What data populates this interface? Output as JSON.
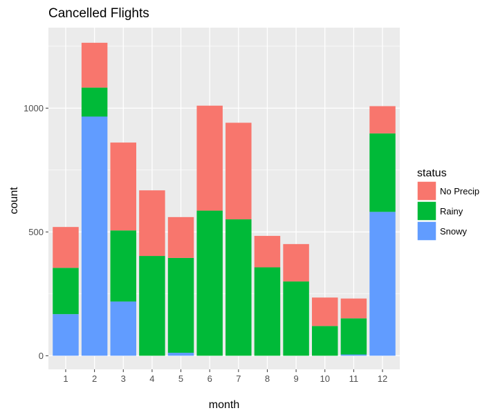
{
  "chart_data": {
    "type": "bar",
    "stacked": true,
    "title": "Cancelled Flights",
    "xlabel": "month",
    "ylabel": "count",
    "categories": [
      "1",
      "2",
      "3",
      "4",
      "5",
      "6",
      "7",
      "8",
      "9",
      "10",
      "11",
      "12"
    ],
    "series": [
      {
        "name": "Snowy",
        "color": "#619CFF",
        "values": [
          168,
          966,
          219,
          0,
          12,
          0,
          0,
          0,
          0,
          0,
          5,
          581
        ]
      },
      {
        "name": "Rainy",
        "color": "#00BA38",
        "values": [
          187,
          117,
          287,
          403,
          383,
          586,
          551,
          357,
          300,
          120,
          146,
          317
        ]
      },
      {
        "name": "No Precip",
        "color": "#F8766D",
        "values": [
          165,
          181,
          355,
          265,
          165,
          424,
          390,
          127,
          151,
          115,
          80,
          110
        ]
      }
    ],
    "yticks": [
      0,
      500,
      1000
    ],
    "ylim": [
      -55,
      1325
    ],
    "grid": true,
    "panel_background": "#EBEBEB",
    "legend": {
      "title": "status",
      "position": "right",
      "entries": [
        {
          "name": "No Precip",
          "color": "#F8766D"
        },
        {
          "name": "Rainy",
          "color": "#00BA38"
        },
        {
          "name": "Snowy",
          "color": "#619CFF"
        }
      ]
    }
  }
}
